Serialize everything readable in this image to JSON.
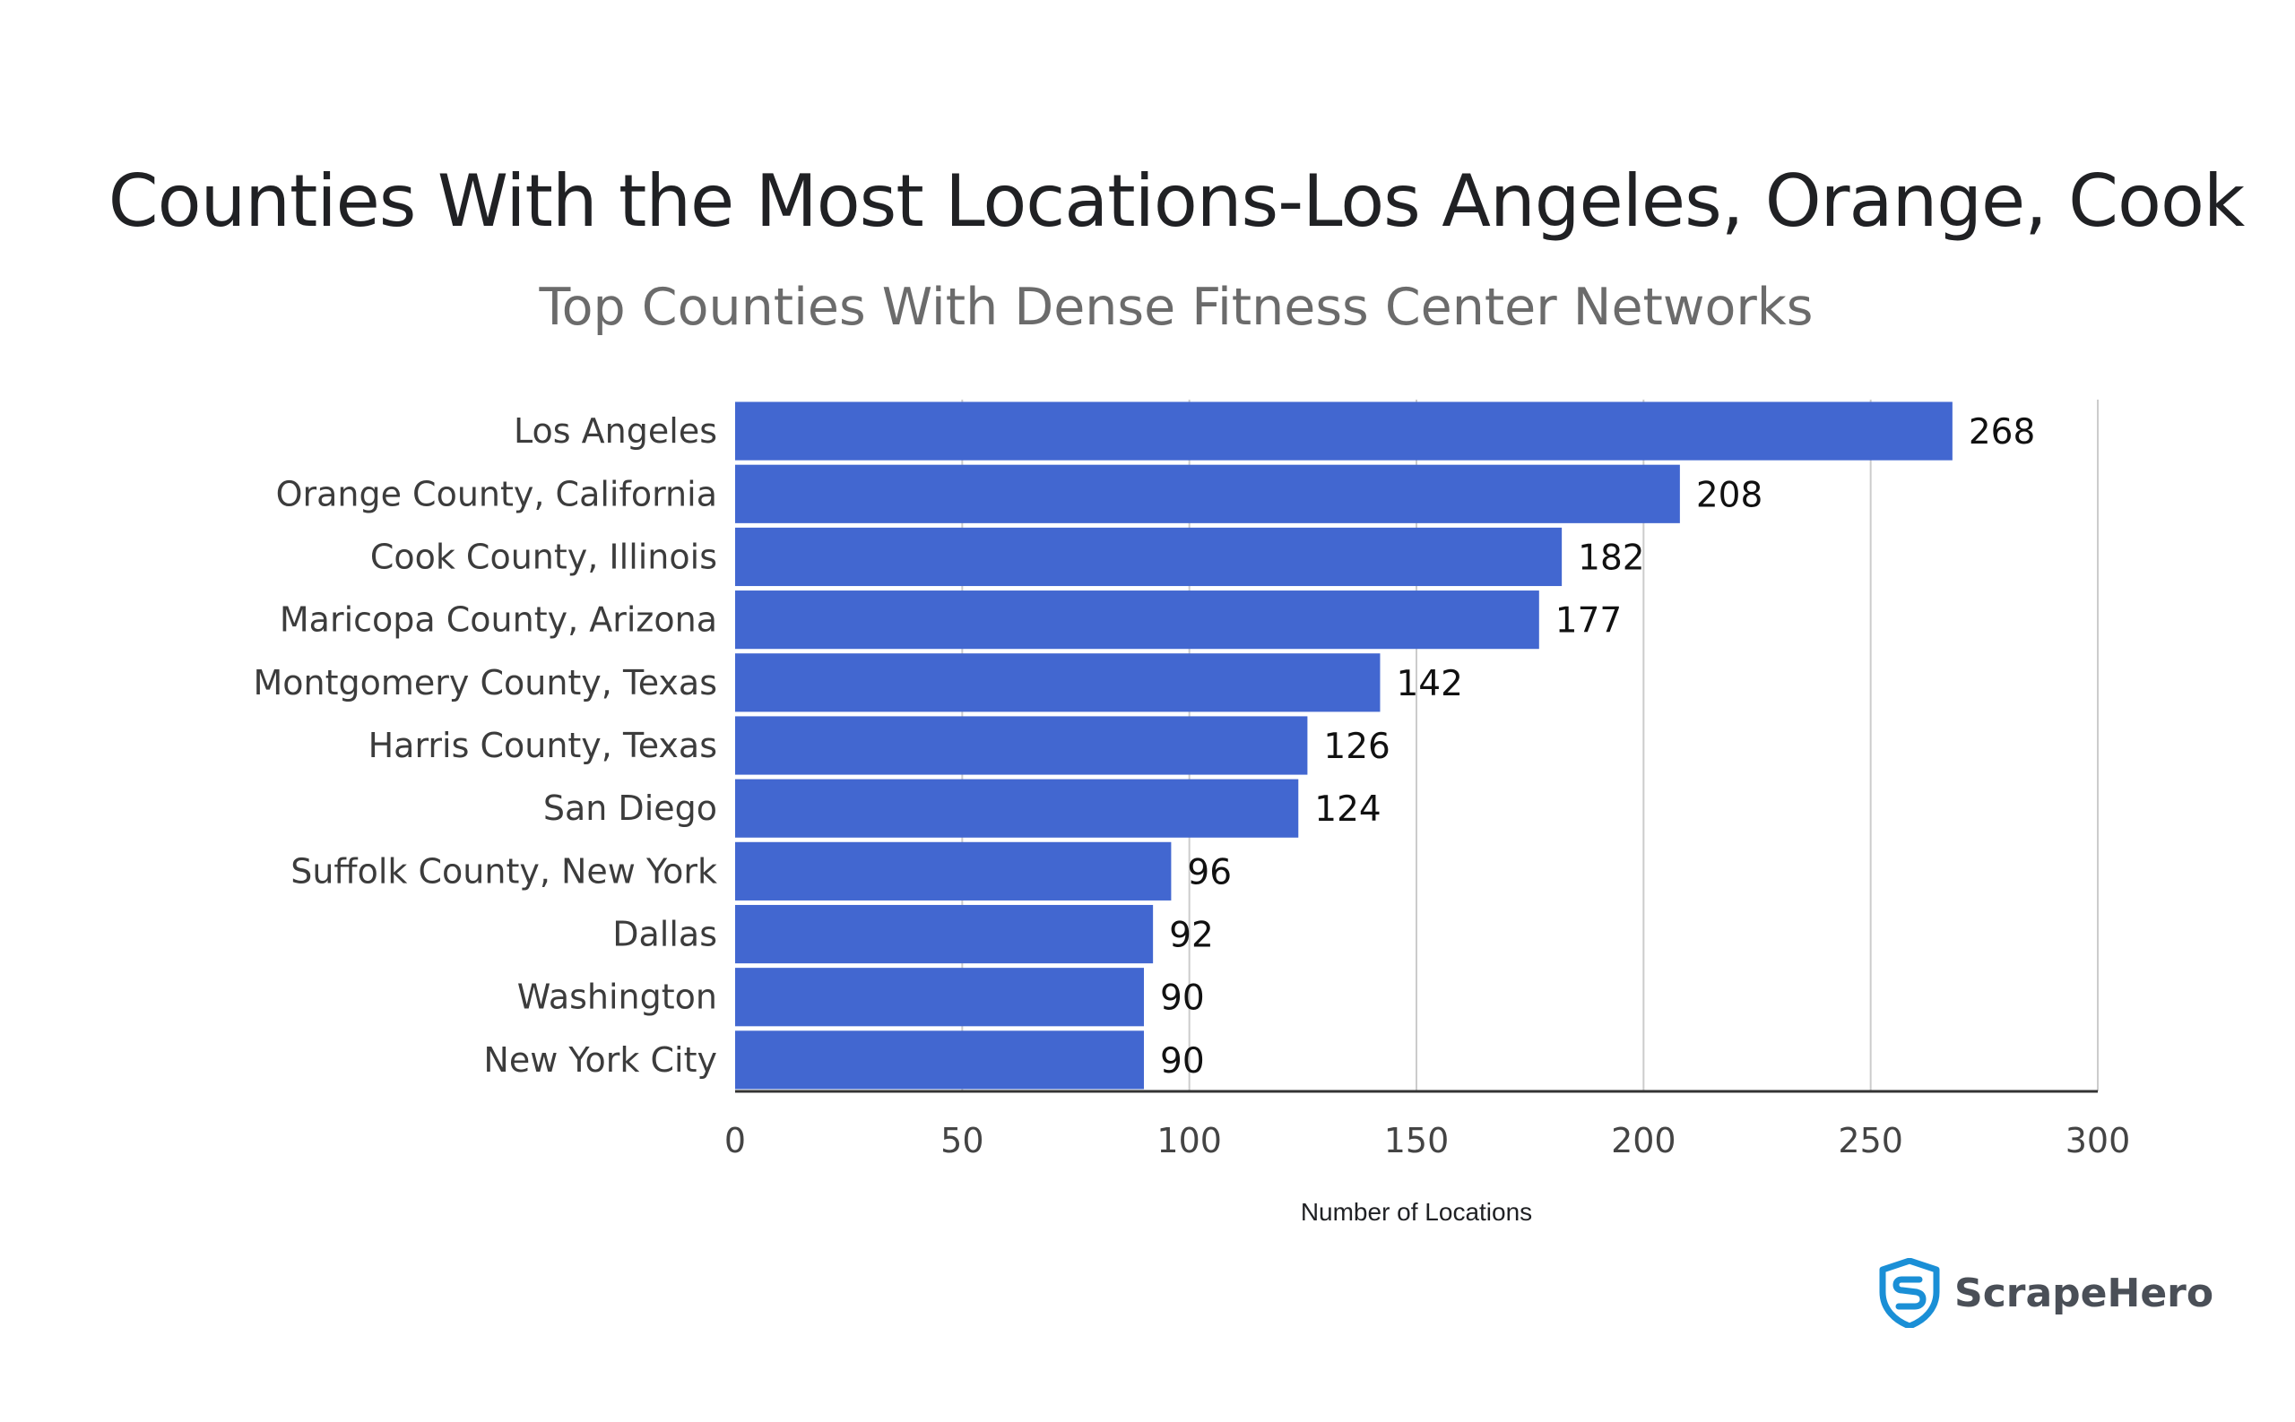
{
  "chart_data": {
    "type": "bar",
    "orientation": "horizontal",
    "title": "Counties With the Most Locations-Los Angeles, Orange, Cook",
    "subtitle": "Top Counties With Dense Fitness Center Networks",
    "xlabel": "Number of Locations",
    "ylabel": "",
    "categories": [
      "Los Angeles",
      "Orange County, California",
      "Cook County, Illinois",
      "Maricopa County, Arizona",
      "Montgomery County, Texas",
      "Harris County, Texas",
      "San Diego",
      "Suffolk County, New York",
      "Dallas",
      "Washington",
      "New York City"
    ],
    "values": [
      268,
      208,
      182,
      177,
      142,
      126,
      124,
      96,
      92,
      90,
      90
    ],
    "xlim": [
      0,
      300
    ],
    "ticks": [
      0,
      50,
      100,
      150,
      200,
      250,
      300
    ],
    "grid": true,
    "data_labels": true,
    "bar_color": "#4267d0"
  },
  "brand": {
    "name": "ScrapeHero",
    "icon": "shield-s-icon",
    "color": "#1a8fd6"
  }
}
